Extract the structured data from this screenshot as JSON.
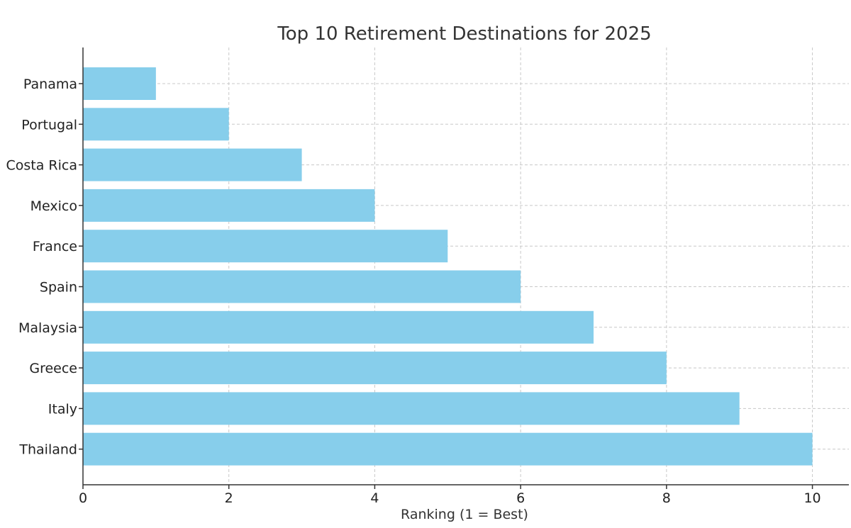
{
  "chart_data": {
    "type": "bar",
    "orientation": "horizontal",
    "title": "Top 10 Retirement Destinations for 2025",
    "xlabel": "Ranking (1 = Best)",
    "ylabel": "",
    "categories": [
      "Panama",
      "Portugal",
      "Costa Rica",
      "Mexico",
      "France",
      "Spain",
      "Malaysia",
      "Greece",
      "Italy",
      "Thailand"
    ],
    "values": [
      1,
      2,
      3,
      4,
      5,
      6,
      7,
      8,
      9,
      10
    ],
    "xlim": [
      0,
      10.5
    ],
    "xticks": [
      0,
      2,
      4,
      6,
      8,
      10
    ],
    "grid": true,
    "bar_color": "#87CEEB"
  }
}
